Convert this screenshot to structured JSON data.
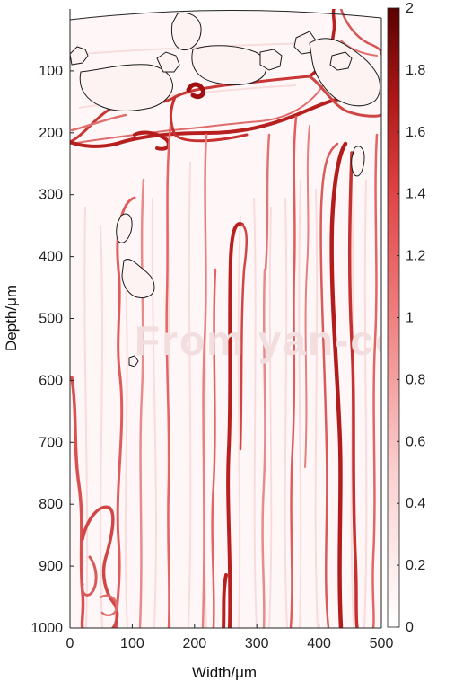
{
  "chart_data": {
    "type": "heatmap",
    "title": "",
    "xlabel": "Width/μm",
    "ylabel": "Depth/μm",
    "xlim": [
      0,
      500
    ],
    "ylim": [
      0,
      1000
    ],
    "y_direction": "down",
    "x_ticks": [
      0,
      100,
      200,
      300,
      400,
      500
    ],
    "y_ticks": [
      100,
      200,
      300,
      400,
      500,
      600,
      700,
      800,
      900,
      1000
    ],
    "colorbar": {
      "min": 0,
      "max": 2,
      "ticks": [
        "0",
        "0.2",
        "0.4",
        "0.6",
        "0.8",
        "1",
        "1.2",
        "1.4",
        "1.6",
        "1.8",
        "2"
      ],
      "colors": [
        "#ffffff",
        "#e85a5a",
        "#5a0000"
      ]
    },
    "watermark": "From yan-con"
  }
}
